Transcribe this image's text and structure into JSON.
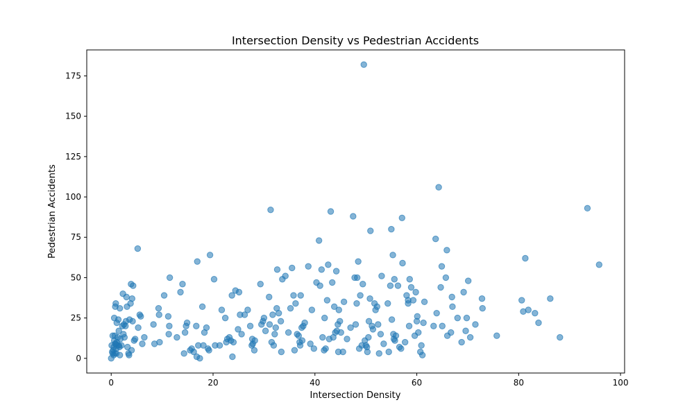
{
  "chart_data": {
    "type": "scatter",
    "title": "Intersection Density vs Pedestrian Accidents",
    "xlabel": "Intersection Density",
    "ylabel": "Pedestrian Accidents",
    "xlim": [
      -4.8,
      100.8
    ],
    "ylim": [
      -9.1,
      191.1
    ],
    "xticks": [
      0,
      20,
      40,
      60,
      80,
      100
    ],
    "yticks": [
      0,
      25,
      50,
      75,
      100,
      125,
      150,
      175
    ],
    "grid": false,
    "legend": "none",
    "marker_color": "#1f77b4",
    "marker_alpha": 0.55,
    "points": [
      [
        0.0,
        0
      ],
      [
        0.1,
        8
      ],
      [
        0.2,
        4
      ],
      [
        0.3,
        3
      ],
      [
        0.4,
        5
      ],
      [
        0.5,
        2
      ],
      [
        0.5,
        7
      ],
      [
        0.6,
        11
      ],
      [
        0.7,
        14
      ],
      [
        0.8,
        9
      ],
      [
        0.8,
        32
      ],
      [
        0.9,
        34
      ],
      [
        1.0,
        3
      ],
      [
        1.0,
        6
      ],
      [
        1.1,
        22
      ],
      [
        1.1,
        10
      ],
      [
        1.2,
        8
      ],
      [
        1.3,
        13
      ],
      [
        1.4,
        24
      ],
      [
        1.5,
        17
      ],
      [
        1.6,
        7
      ],
      [
        1.7,
        2
      ],
      [
        1.7,
        31
      ],
      [
        1.8,
        12
      ],
      [
        2.0,
        8
      ],
      [
        2.2,
        20
      ],
      [
        2.3,
        40
      ],
      [
        2.4,
        15
      ],
      [
        2.5,
        21
      ],
      [
        2.6,
        13
      ],
      [
        2.8,
        20
      ],
      [
        2.9,
        23
      ],
      [
        3.0,
        38
      ],
      [
        3.1,
        32
      ],
      [
        3.2,
        7
      ],
      [
        3.4,
        3
      ],
      [
        3.5,
        2
      ],
      [
        3.6,
        24
      ],
      [
        3.8,
        34
      ],
      [
        3.9,
        46
      ],
      [
        4.0,
        5
      ],
      [
        4.1,
        37
      ],
      [
        4.2,
        23
      ],
      [
        4.3,
        45
      ],
      [
        4.5,
        11
      ],
      [
        4.7,
        12
      ],
      [
        5.2,
        68
      ],
      [
        5.3,
        19
      ],
      [
        5.6,
        27
      ],
      [
        5.8,
        26
      ],
      [
        6.1,
        9
      ],
      [
        6.5,
        13
      ],
      [
        0.6,
        25
      ],
      [
        0.3,
        14
      ],
      [
        0.7,
        3
      ],
      [
        0.9,
        9
      ],
      [
        1.5,
        8
      ],
      [
        8.3,
        21
      ],
      [
        8.5,
        9
      ],
      [
        9.3,
        31
      ],
      [
        9.4,
        27
      ],
      [
        9.5,
        10
      ],
      [
        10.4,
        39
      ],
      [
        11.2,
        26
      ],
      [
        11.3,
        15
      ],
      [
        11.4,
        20
      ],
      [
        11.5,
        50
      ],
      [
        12.9,
        13
      ],
      [
        13.6,
        41
      ],
      [
        14.0,
        46
      ],
      [
        14.3,
        3
      ],
      [
        14.5,
        16
      ],
      [
        14.7,
        20
      ],
      [
        14.9,
        22
      ],
      [
        15.5,
        5
      ],
      [
        15.8,
        6
      ],
      [
        16.2,
        4
      ],
      [
        16.7,
        20
      ],
      [
        16.8,
        1
      ],
      [
        16.9,
        60
      ],
      [
        17.1,
        8
      ],
      [
        17.4,
        0
      ],
      [
        17.9,
        32
      ],
      [
        18.1,
        8
      ],
      [
        18.3,
        16
      ],
      [
        18.7,
        19
      ],
      [
        19.0,
        6
      ],
      [
        19.2,
        5
      ],
      [
        19.4,
        64
      ],
      [
        20.2,
        49
      ],
      [
        20.4,
        8
      ],
      [
        21.3,
        8
      ],
      [
        21.7,
        30
      ],
      [
        22.4,
        25
      ],
      [
        22.6,
        10
      ],
      [
        22.8,
        12
      ],
      [
        23.2,
        13
      ],
      [
        23.5,
        11
      ],
      [
        23.7,
        39
      ],
      [
        23.8,
        1
      ],
      [
        24.0,
        10
      ],
      [
        24.4,
        42
      ],
      [
        24.9,
        18
      ],
      [
        25.1,
        41
      ],
      [
        25.3,
        27
      ],
      [
        25.6,
        15
      ],
      [
        26.2,
        27
      ],
      [
        26.8,
        30
      ],
      [
        27.3,
        20
      ],
      [
        27.6,
        8
      ],
      [
        27.7,
        12
      ],
      [
        27.8,
        9
      ],
      [
        28.1,
        5
      ],
      [
        28.2,
        11
      ],
      [
        29.3,
        46
      ],
      [
        29.5,
        21
      ],
      [
        29.8,
        23
      ],
      [
        30.0,
        25
      ],
      [
        30.3,
        17
      ],
      [
        31.0,
        38
      ],
      [
        31.1,
        21
      ],
      [
        31.3,
        92
      ],
      [
        31.5,
        10
      ],
      [
        31.7,
        27
      ],
      [
        31.9,
        8
      ],
      [
        32.1,
        15
      ],
      [
        32.3,
        19
      ],
      [
        32.5,
        31
      ],
      [
        32.6,
        55
      ],
      [
        32.9,
        28
      ],
      [
        33.3,
        23
      ],
      [
        33.4,
        4
      ],
      [
        33.6,
        49
      ],
      [
        34.2,
        51
      ],
      [
        34.8,
        16
      ],
      [
        35.2,
        31
      ],
      [
        35.5,
        56
      ],
      [
        35.8,
        39
      ],
      [
        36.0,
        5
      ],
      [
        36.2,
        34
      ],
      [
        36.5,
        15
      ],
      [
        36.8,
        14
      ],
      [
        37.0,
        10
      ],
      [
        37.1,
        8
      ],
      [
        37.2,
        39
      ],
      [
        37.4,
        19
      ],
      [
        37.5,
        11
      ],
      [
        37.7,
        20
      ],
      [
        38.0,
        22
      ],
      [
        38.7,
        57
      ],
      [
        39.1,
        9
      ],
      [
        39.4,
        30
      ],
      [
        39.8,
        6
      ],
      [
        40.3,
        47
      ],
      [
        40.8,
        73
      ],
      [
        41.0,
        45
      ],
      [
        41.3,
        55
      ],
      [
        41.5,
        13
      ],
      [
        41.8,
        5
      ],
      [
        41.9,
        25
      ],
      [
        42.1,
        6
      ],
      [
        42.4,
        36
      ],
      [
        42.6,
        58
      ],
      [
        42.8,
        12
      ],
      [
        43.1,
        91
      ],
      [
        43.4,
        47
      ],
      [
        43.6,
        13
      ],
      [
        43.8,
        32
      ],
      [
        44.0,
        16
      ],
      [
        44.2,
        54
      ],
      [
        44.3,
        17
      ],
      [
        44.5,
        21
      ],
      [
        44.6,
        4
      ],
      [
        44.7,
        30
      ],
      [
        44.9,
        23
      ],
      [
        45.1,
        16
      ],
      [
        45.5,
        4
      ],
      [
        45.7,
        35
      ],
      [
        46.3,
        12
      ],
      [
        47.0,
        19
      ],
      [
        47.5,
        88
      ],
      [
        47.8,
        50
      ],
      [
        48.0,
        21
      ],
      [
        48.2,
        34
      ],
      [
        48.3,
        50
      ],
      [
        48.5,
        60
      ],
      [
        48.7,
        6
      ],
      [
        48.9,
        39
      ],
      [
        49.2,
        8
      ],
      [
        49.4,
        46
      ],
      [
        49.6,
        182
      ],
      [
        49.8,
        11
      ],
      [
        50.0,
        8
      ],
      [
        50.2,
        7
      ],
      [
        50.3,
        4
      ],
      [
        50.5,
        13
      ],
      [
        50.6,
        23
      ],
      [
        50.8,
        37
      ],
      [
        50.9,
        79
      ],
      [
        51.2,
        20
      ],
      [
        51.4,
        18
      ],
      [
        51.7,
        34
      ],
      [
        51.9,
        30
      ],
      [
        52.2,
        32
      ],
      [
        52.4,
        21
      ],
      [
        52.6,
        3
      ],
      [
        52.9,
        15
      ],
      [
        53.1,
        51
      ],
      [
        53.5,
        9
      ],
      [
        54.3,
        34
      ],
      [
        54.5,
        4
      ],
      [
        54.8,
        45
      ],
      [
        55.0,
        80
      ],
      [
        55.1,
        24
      ],
      [
        55.3,
        64
      ],
      [
        55.4,
        15
      ],
      [
        55.5,
        12
      ],
      [
        55.6,
        49
      ],
      [
        55.7,
        11
      ],
      [
        55.9,
        14
      ],
      [
        56.3,
        45
      ],
      [
        56.6,
        7
      ],
      [
        56.9,
        6
      ],
      [
        57.1,
        87
      ],
      [
        57.2,
        59
      ],
      [
        57.7,
        10
      ],
      [
        58.0,
        39
      ],
      [
        58.3,
        36
      ],
      [
        58.3,
        34
      ],
      [
        58.5,
        20
      ],
      [
        58.6,
        49
      ],
      [
        58.9,
        44
      ],
      [
        59.3,
        36
      ],
      [
        59.6,
        14
      ],
      [
        59.8,
        41
      ],
      [
        60.0,
        23
      ],
      [
        60.1,
        26
      ],
      [
        60.3,
        16
      ],
      [
        60.7,
        4
      ],
      [
        60.9,
        8
      ],
      [
        61.1,
        2
      ],
      [
        61.3,
        22
      ],
      [
        61.5,
        35
      ],
      [
        63.3,
        20
      ],
      [
        63.7,
        74
      ],
      [
        63.9,
        28
      ],
      [
        64.3,
        106
      ],
      [
        64.7,
        44
      ],
      [
        64.9,
        57
      ],
      [
        65.0,
        20
      ],
      [
        65.7,
        50
      ],
      [
        65.9,
        67
      ],
      [
        66.0,
        14
      ],
      [
        66.7,
        16
      ],
      [
        66.9,
        38
      ],
      [
        67.0,
        32
      ],
      [
        68.0,
        25
      ],
      [
        68.8,
        10
      ],
      [
        69.2,
        41
      ],
      [
        69.6,
        17
      ],
      [
        69.8,
        25
      ],
      [
        70.1,
        48
      ],
      [
        70.5,
        13
      ],
      [
        71.5,
        21
      ],
      [
        72.8,
        37
      ],
      [
        72.9,
        31
      ],
      [
        75.7,
        14
      ],
      [
        80.6,
        36
      ],
      [
        80.9,
        29
      ],
      [
        81.3,
        62
      ],
      [
        81.9,
        30
      ],
      [
        83.2,
        28
      ],
      [
        83.9,
        22
      ],
      [
        86.2,
        37
      ],
      [
        88.1,
        13
      ],
      [
        93.5,
        93
      ],
      [
        95.8,
        58
      ]
    ]
  }
}
